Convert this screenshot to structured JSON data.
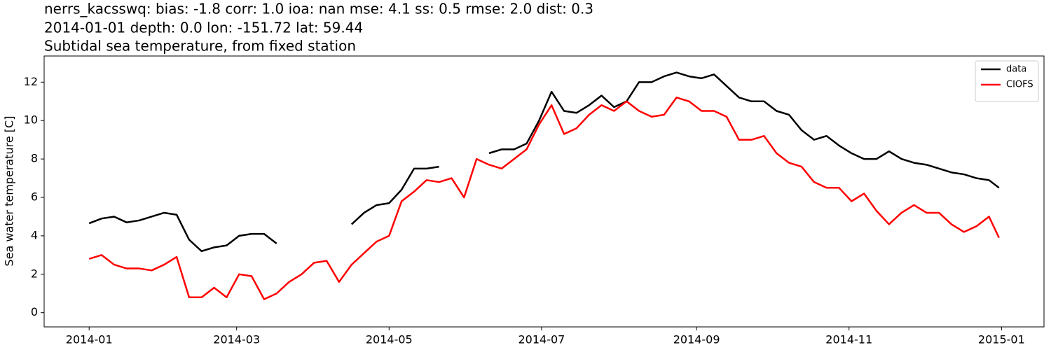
{
  "chart_data": {
    "type": "line",
    "title": [
      "nerrs_kacsswq: bias: -1.8  corr: 1.0  ioa: nan  mse: 4.1  ss: 0.5  rmse: 2.0  dist: 0.3",
      "2014-01-01 depth: 0.0 lon: -151.72 lat: 59.44",
      "Subtidal sea temperature, from fixed station"
    ],
    "ylabel": "Sea water temperature [C]",
    "x": [
      0,
      5,
      10,
      15,
      20,
      25,
      30,
      35,
      40,
      45,
      50,
      55,
      60,
      65,
      70,
      75,
      80,
      85,
      90,
      95,
      100,
      105,
      110,
      115,
      120,
      125,
      130,
      135,
      140,
      145,
      150,
      155,
      160,
      165,
      170,
      175,
      180,
      185,
      190,
      195,
      200,
      205,
      210,
      215,
      220,
      225,
      230,
      235,
      240,
      245,
      250,
      255,
      260,
      265,
      270,
      275,
      280,
      285,
      290,
      295,
      300,
      305,
      310,
      315,
      320,
      325,
      330,
      335,
      340,
      345,
      350,
      355,
      360,
      364
    ],
    "series": [
      {
        "name": "data",
        "color": "#000000",
        "values": [
          4.65,
          4.9,
          5.0,
          4.7,
          4.8,
          5.0,
          5.2,
          5.1,
          3.8,
          3.2,
          3.4,
          3.5,
          4.0,
          4.1,
          4.1,
          3.6,
          null,
          null,
          null,
          null,
          null,
          4.6,
          5.2,
          5.6,
          5.7,
          6.4,
          7.5,
          7.5,
          7.6,
          null,
          null,
          null,
          8.3,
          8.5,
          8.5,
          8.8,
          10.0,
          11.5,
          10.5,
          10.4,
          10.8,
          11.3,
          10.7,
          11.0,
          12.0,
          12.0,
          12.3,
          12.5,
          12.3,
          12.2,
          12.4,
          11.8,
          11.2,
          11.0,
          11.0,
          10.5,
          10.3,
          9.5,
          9.0,
          9.2,
          8.7,
          8.3,
          8.0,
          8.0,
          8.4,
          8.0,
          7.8,
          7.7,
          7.5,
          7.3,
          7.2,
          7.0,
          6.9,
          6.5
        ]
      },
      {
        "name": "CIOFS",
        "color": "#ff0000",
        "values": [
          2.8,
          3.0,
          2.5,
          2.3,
          2.3,
          2.2,
          2.5,
          2.9,
          0.8,
          0.8,
          1.3,
          0.8,
          2.0,
          1.9,
          0.7,
          1.0,
          1.6,
          2.0,
          2.6,
          2.7,
          1.6,
          2.5,
          3.1,
          3.7,
          4.0,
          5.8,
          6.3,
          6.9,
          6.8,
          7.0,
          6.0,
          8.0,
          7.7,
          7.5,
          8.0,
          8.5,
          9.8,
          10.8,
          9.3,
          9.6,
          10.3,
          10.8,
          10.5,
          11.0,
          10.5,
          10.2,
          10.3,
          11.2,
          11.0,
          10.5,
          10.5,
          10.2,
          9.0,
          9.0,
          9.2,
          8.3,
          7.8,
          7.6,
          6.8,
          6.5,
          6.5,
          5.8,
          6.2,
          5.3,
          4.6,
          5.2,
          5.6,
          5.2,
          5.2,
          4.6,
          4.2,
          4.5,
          5.0,
          3.9
        ]
      }
    ],
    "xlim": [
      -18,
      382
    ],
    "xticks": [
      {
        "value": 0,
        "label": "2014-01"
      },
      {
        "value": 59,
        "label": "2014-03"
      },
      {
        "value": 120,
        "label": "2014-05"
      },
      {
        "value": 181,
        "label": "2014-07"
      },
      {
        "value": 243,
        "label": "2014-09"
      },
      {
        "value": 304,
        "label": "2014-11"
      },
      {
        "value": 365,
        "label": "2015-01"
      }
    ],
    "ylim": [
      -0.74,
      13.36
    ],
    "yticks": [
      0,
      2,
      4,
      6,
      8,
      10,
      12
    ],
    "grid": false,
    "legend": "upper right"
  }
}
